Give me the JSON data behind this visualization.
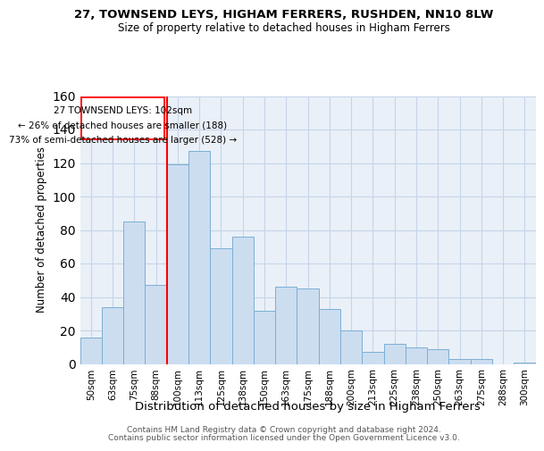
{
  "title1": "27, TOWNSEND LEYS, HIGHAM FERRERS, RUSHDEN, NN10 8LW",
  "title2": "Size of property relative to detached houses in Higham Ferrers",
  "xlabel": "Distribution of detached houses by size in Higham Ferrers",
  "ylabel": "Number of detached properties",
  "categories": [
    "50sqm",
    "63sqm",
    "75sqm",
    "88sqm",
    "100sqm",
    "113sqm",
    "125sqm",
    "138sqm",
    "150sqm",
    "163sqm",
    "175sqm",
    "188sqm",
    "200sqm",
    "213sqm",
    "225sqm",
    "238sqm",
    "250sqm",
    "263sqm",
    "275sqm",
    "288sqm",
    "300sqm"
  ],
  "values": [
    16,
    34,
    85,
    47,
    119,
    127,
    69,
    76,
    32,
    46,
    45,
    33,
    20,
    7,
    12,
    10,
    9,
    3,
    3,
    0,
    1
  ],
  "bar_color": "#ccddf0",
  "bar_edge_color": "#7bafd4",
  "marker_color": "red",
  "annotation_line1": "27 TOWNSEND LEYS: 102sqm",
  "annotation_line2": "← 26% of detached houses are smaller (188)",
  "annotation_line3": "73% of semi-detached houses are larger (528) →",
  "ylim": [
    0,
    160
  ],
  "yticks": [
    0,
    20,
    40,
    60,
    80,
    100,
    120,
    140,
    160
  ],
  "grid_color": "#c5d5e8",
  "bg_color": "#eaf0f8",
  "footer1": "Contains HM Land Registry data © Crown copyright and database right 2024.",
  "footer2": "Contains public sector information licensed under the Open Government Licence v3.0.",
  "property_bin_index": 4,
  "n_bins": 21
}
